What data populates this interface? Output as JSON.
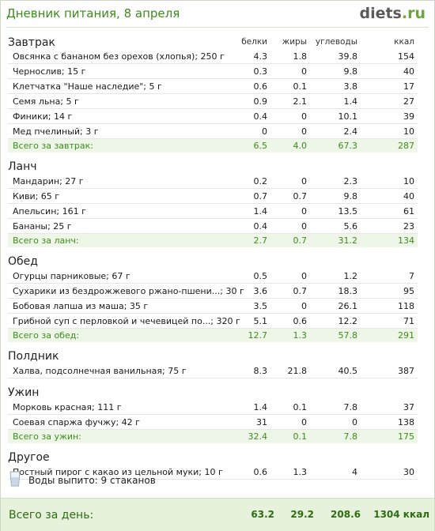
{
  "header": {
    "title": "Дневник питания, 8 апреля",
    "logo_main": "diets",
    "logo_tld": ".ru"
  },
  "columns": {
    "protein": "белки",
    "fat": "жиры",
    "carbs": "углеводы",
    "kcal": "ккал"
  },
  "colors": {
    "accent_green": "#3e8a1f",
    "total_row_bg": "#eef6e8",
    "day_total_bg": "#e6f2dc"
  },
  "meals": [
    {
      "name": "Завтрак",
      "items": [
        {
          "name": "Овсянка с бананом без орехов (хлопья); 250 г",
          "protein": "4.3",
          "fat": "1.8",
          "carbs": "39.8",
          "kcal": "154"
        },
        {
          "name": "Чернослив; 15 г",
          "protein": "0.3",
          "fat": "0",
          "carbs": "9.8",
          "kcal": "40"
        },
        {
          "name": "Клетчатка \"Наше наследие\"; 5 г",
          "protein": "0.6",
          "fat": "0.1",
          "carbs": "3.8",
          "kcal": "17"
        },
        {
          "name": "Семя льна; 5 г",
          "protein": "0.9",
          "fat": "2.1",
          "carbs": "1.4",
          "kcal": "27"
        },
        {
          "name": "Финики; 14 г",
          "protein": "0.4",
          "fat": "0",
          "carbs": "10.1",
          "kcal": "39"
        },
        {
          "name": "Мед пчелиный; 3 г",
          "protein": "0",
          "fat": "0",
          "carbs": "2.4",
          "kcal": "10"
        }
      ],
      "total": {
        "label": "Всего за завтрак:",
        "protein": "6.5",
        "fat": "4.0",
        "carbs": "67.3",
        "kcal": "287"
      }
    },
    {
      "name": "Ланч",
      "items": [
        {
          "name": "Мандарин; 27 г",
          "protein": "0.2",
          "fat": "0",
          "carbs": "2.3",
          "kcal": "10"
        },
        {
          "name": "Киви; 65 г",
          "protein": "0.7",
          "fat": "0.7",
          "carbs": "9.8",
          "kcal": "40"
        },
        {
          "name": "Апельсин; 161 г",
          "protein": "1.4",
          "fat": "0",
          "carbs": "13.5",
          "kcal": "61"
        },
        {
          "name": "Бананы; 25 г",
          "protein": "0.4",
          "fat": "0",
          "carbs": "5.6",
          "kcal": "23"
        }
      ],
      "total": {
        "label": "Всего за ланч:",
        "protein": "2.7",
        "fat": "0.7",
        "carbs": "31.2",
        "kcal": "134"
      }
    },
    {
      "name": "Обед",
      "items": [
        {
          "name": "Огурцы парниковые; 67 г",
          "protein": "0.5",
          "fat": "0",
          "carbs": "1.2",
          "kcal": "7"
        },
        {
          "name": "Сухарики из бездрожжевого ржано-пшени...; 30 г",
          "protein": "3.6",
          "fat": "0.7",
          "carbs": "18.3",
          "kcal": "95"
        },
        {
          "name": "Бобовая лапша из маша; 35 г",
          "protein": "3.5",
          "fat": "0",
          "carbs": "26.1",
          "kcal": "118"
        },
        {
          "name": "Грибной суп с перловкой и чечевицей по...; 320 г",
          "protein": "5.1",
          "fat": "0.6",
          "carbs": "12.2",
          "kcal": "71"
        }
      ],
      "total": {
        "label": "Всего за обед:",
        "protein": "12.7",
        "fat": "1.3",
        "carbs": "57.8",
        "kcal": "291"
      }
    },
    {
      "name": "Полдник",
      "items": [
        {
          "name": "Халва, подсолнечная ванильная; 75 г",
          "protein": "8.3",
          "fat": "21.8",
          "carbs": "40.5",
          "kcal": "387"
        }
      ]
    },
    {
      "name": "Ужин",
      "items": [
        {
          "name": "Морковь красная; 111 г",
          "protein": "1.4",
          "fat": "0.1",
          "carbs": "7.8",
          "kcal": "37"
        },
        {
          "name": "Соевая спаржа фучжу; 42 г",
          "protein": "31",
          "fat": "0",
          "carbs": "0",
          "kcal": "138"
        }
      ],
      "total": {
        "label": "Всего за ужин:",
        "protein": "32.4",
        "fat": "0.1",
        "carbs": "7.8",
        "kcal": "175"
      }
    },
    {
      "name": "Другое",
      "items": [
        {
          "name": "Постный пирог с какао из цельной муки; 10 г",
          "protein": "0.6",
          "fat": "1.3",
          "carbs": "4",
          "kcal": "30"
        }
      ]
    }
  ],
  "water": {
    "icon": "glass-icon",
    "text": "Воды выпито: 9 стаканов"
  },
  "day_total": {
    "label": "Всего за день:",
    "protein": "63.2",
    "fat": "29.2",
    "carbs": "208.6",
    "kcal": "1304 ккал"
  }
}
